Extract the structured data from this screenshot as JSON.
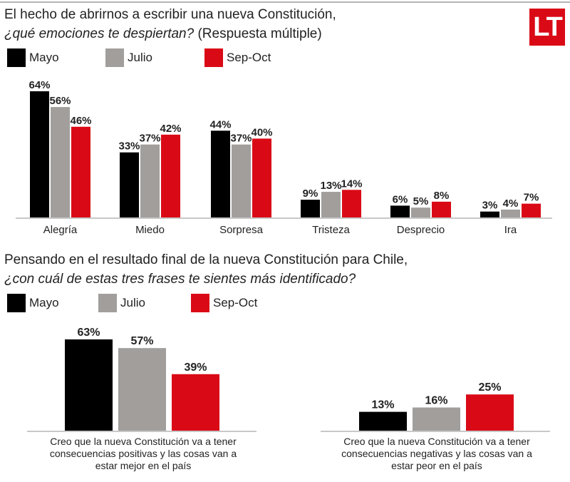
{
  "logo": "LT",
  "colors": {
    "Mayo": "#000000",
    "Julio": "#a19e9c",
    "Sep-Oct": "#d90a16",
    "axis": "#c8c8c8"
  },
  "chart_data": [
    {
      "type": "bar",
      "title_plain": "El hecho de abrirnos a escribir una nueva Constitución,",
      "title_italic": "¿qué emociones te despiertan?",
      "title_suffix": " (Respuesta múltiple)",
      "legend": [
        "Mayo",
        "Julio",
        "Sep-Oct"
      ],
      "legend_position": "top-left",
      "categories": [
        "Alegría",
        "Miedo",
        "Sorpresa",
        "Tristeza",
        "Desprecio",
        "Ira"
      ],
      "series": [
        {
          "name": "Mayo",
          "values": [
            64,
            33,
            44,
            9,
            6,
            3
          ]
        },
        {
          "name": "Julio",
          "values": [
            56,
            37,
            37,
            13,
            5,
            4
          ]
        },
        {
          "name": "Sep-Oct",
          "values": [
            46,
            42,
            40,
            14,
            8,
            7
          ]
        }
      ],
      "value_suffix": "%",
      "ylim": [
        0,
        64
      ],
      "grid": false
    },
    {
      "type": "bar",
      "title_plain": "Pensando en el resultado final de la nueva Constitución para Chile,",
      "title_italic": "¿con cuál de estas tres frases te sientes más identificado?",
      "title_suffix": "",
      "legend": [
        "Mayo",
        "Julio",
        "Sep-Oct"
      ],
      "legend_position": "top-left",
      "categories": [
        "Creo que la nueva Constitución va a tener consecuencias positivas y las cosas van a estar mejor en el país",
        "Creo que la nueva Constitución va a tener consecuencias negativas y las cosas van a estar peor en el país"
      ],
      "category_lines": [
        [
          "Creo que la nueva Constitución va a tener",
          "consecuencias positivas y las cosas van a",
          "estar mejor en el país"
        ],
        [
          "Creo que la nueva Constitución va a tener",
          "consecuencias negativas y las cosas van a",
          "estar peor en el país"
        ]
      ],
      "series": [
        {
          "name": "Mayo",
          "values": [
            63,
            13
          ]
        },
        {
          "name": "Julio",
          "values": [
            57,
            16
          ]
        },
        {
          "name": "Sep-Oct",
          "values": [
            39,
            25
          ]
        }
      ],
      "value_suffix": "%",
      "ylim": [
        0,
        63
      ],
      "grid": false
    }
  ]
}
